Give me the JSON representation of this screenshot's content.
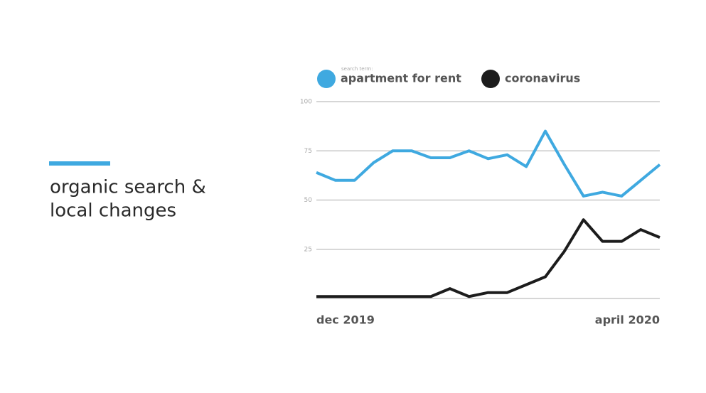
{
  "slide": {
    "title_lines": [
      "organic search &",
      "local changes"
    ]
  },
  "chart_data": {
    "type": "line",
    "legend_caption": "search term:",
    "categories": [
      "dec 2019",
      null,
      null,
      null,
      null,
      null,
      null,
      null,
      null,
      null,
      null,
      null,
      null,
      null,
      null,
      null,
      null,
      null,
      "april 2020"
    ],
    "series": [
      {
        "name": "apartment for rent",
        "color": "#3fa9e0",
        "values": [
          64,
          60,
          60,
          69,
          75,
          75,
          71.5,
          71.5,
          75,
          71,
          73,
          67,
          85,
          68,
          52,
          54,
          52,
          60,
          68
        ]
      },
      {
        "name": "coronavirus",
        "color": "#1c1c1c",
        "values": [
          1,
          1,
          1,
          1,
          1,
          1,
          1,
          5,
          1,
          3,
          3,
          7,
          11,
          24,
          40,
          29,
          29,
          35,
          31
        ]
      }
    ],
    "ylim": [
      0,
      100
    ],
    "yticks": [
      25,
      50,
      75,
      100
    ],
    "grid": true
  }
}
